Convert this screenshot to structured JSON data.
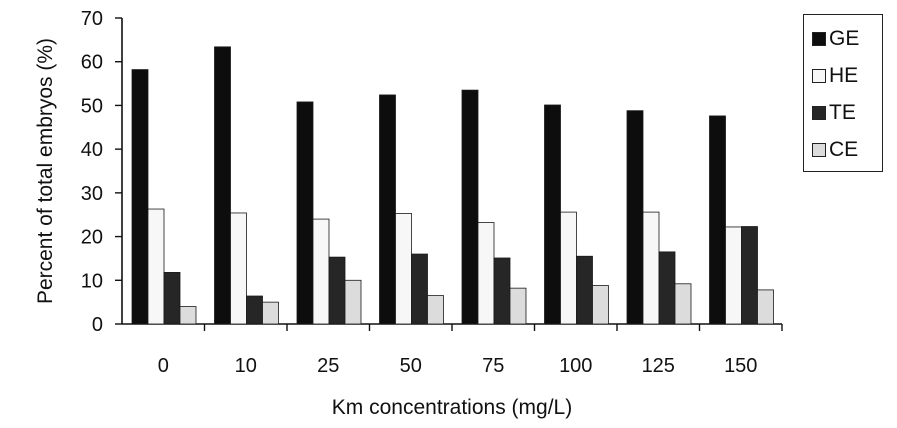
{
  "chart_data": {
    "type": "bar",
    "xlabel": "Km concentrations (mg/L)",
    "ylabel": "Percent of total embryos (%)",
    "ylim": [
      0,
      70
    ],
    "yticks": [
      "0",
      "10",
      "20",
      "30",
      "40",
      "50",
      "60",
      "70"
    ],
    "categories": [
      "0",
      "10",
      "25",
      "50",
      "75",
      "100",
      "125",
      "150"
    ],
    "series": [
      {
        "name": "GE",
        "color": "#0d0d0d",
        "values": [
          58.2,
          63.4,
          50.8,
          52.4,
          53.5,
          50.1,
          48.8,
          47.6
        ]
      },
      {
        "name": "HE",
        "color": "#f7f7f7",
        "values": [
          26.3,
          25.4,
          24.0,
          25.3,
          23.2,
          25.6,
          25.6,
          22.2
        ]
      },
      {
        "name": "TE",
        "color": "#262626",
        "values": [
          11.8,
          6.4,
          15.3,
          16.0,
          15.1,
          15.5,
          16.5,
          22.3
        ]
      },
      {
        "name": "CE",
        "color": "#dcdcdc",
        "values": [
          4.0,
          5.0,
          10.0,
          6.5,
          8.2,
          8.8,
          9.2,
          7.8
        ]
      }
    ],
    "legend_position": "right",
    "grid": false
  }
}
